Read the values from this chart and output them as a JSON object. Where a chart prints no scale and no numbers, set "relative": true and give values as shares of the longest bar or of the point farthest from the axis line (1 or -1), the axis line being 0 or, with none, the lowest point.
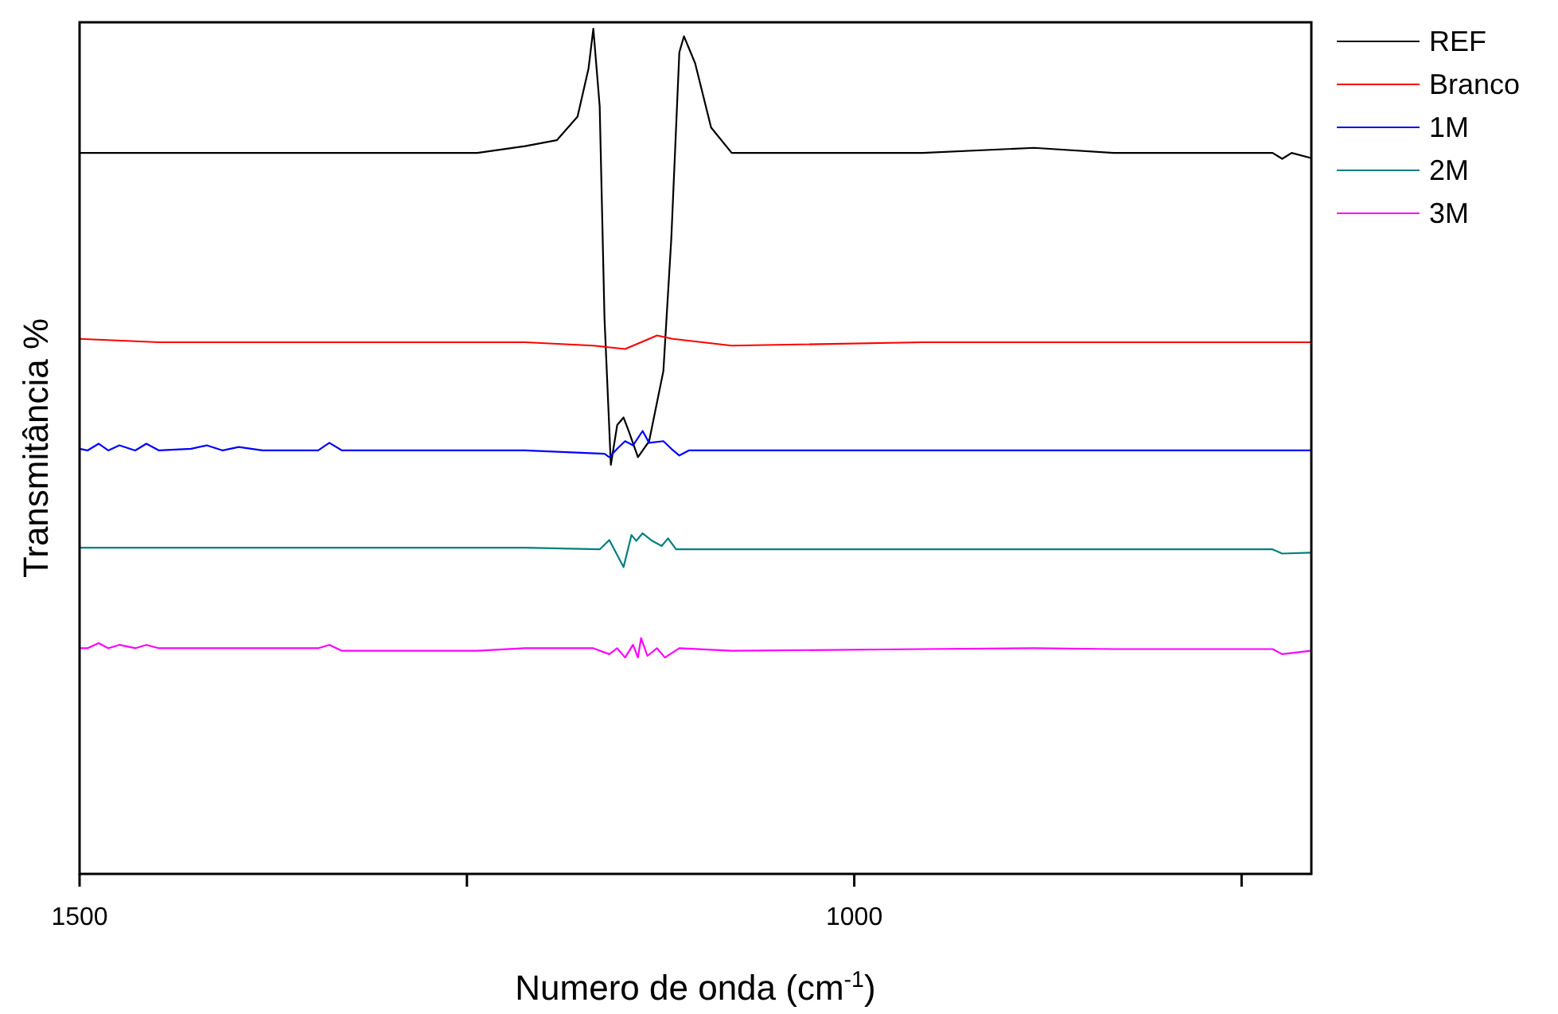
{
  "chart_data": {
    "type": "line",
    "xlabel": "Numero de onda (cm$^{-1}$)",
    "ylabel": "Transmitância %",
    "relative": true,
    "xlim": [
      1500,
      705
    ],
    "xticks": [
      1500,
      {
        "value": 1250,
        "label": null
      },
      1000,
      {
        "value": 750,
        "label": null
      }
    ],
    "legend": "right",
    "series": [
      {
        "name": "REF",
        "color": "#000000",
        "x": [
          1500,
          1448.7,
          1397.3,
          1346,
          1294.7,
          1243.3,
          1212.5,
          1192,
          1178.6,
          1171.5,
          1168.4,
          1164.3,
          1161.2,
          1157.1,
          1153,
          1148.9,
          1145.8,
          1139.6,
          1132.4,
          1123.2,
          1118.1,
          1112.9,
          1109.9,
          1102.7,
          1092.4,
          1079.1,
          1038,
          955.9,
          884,
          832.6,
          781.3,
          730,
          723.8,
          717.7,
          705.3
        ],
        "values": [
          0.853,
          0.853,
          0.853,
          0.853,
          0.853,
          0.853,
          0.861,
          0.868,
          0.896,
          0.953,
          1.0,
          0.908,
          0.657,
          0.484,
          0.531,
          0.54,
          0.525,
          0.493,
          0.512,
          0.595,
          0.751,
          0.972,
          0.991,
          0.959,
          0.883,
          0.853,
          0.853,
          0.853,
          0.859,
          0.853,
          0.853,
          0.853,
          0.846,
          0.853,
          0.847
        ]
      },
      {
        "name": "Branco",
        "color": "#ff0000",
        "x": [
          1500,
          1448.7,
          1346,
          1243.3,
          1212.5,
          1168.4,
          1147.9,
          1127.3,
          1117.1,
          1079.1,
          955.9,
          832.6,
          705.3
        ],
        "values": [
          0.633,
          0.629,
          0.629,
          0.629,
          0.629,
          0.625,
          0.621,
          0.637,
          0.633,
          0.625,
          0.629,
          0.629,
          0.629
        ]
      },
      {
        "name": "1M",
        "color": "#0000ff",
        "x": [
          1500,
          1494.9,
          1487.7,
          1481.5,
          1474.3,
          1464.1,
          1456.9,
          1448.7,
          1428.1,
          1417.9,
          1407.6,
          1397.3,
          1381.9,
          1346,
          1338.8,
          1330.6,
          1294.7,
          1243.3,
          1212.5,
          1161.2,
          1158.1,
          1153,
          1147.9,
          1142.8,
          1136.6,
          1132.4,
          1123.2,
          1118.1,
          1112.9,
          1106.8,
          1079.1,
          955.9,
          832.6,
          705.3
        ],
        "values": [
          0.503,
          0.501,
          0.509,
          0.501,
          0.507,
          0.501,
          0.509,
          0.501,
          0.503,
          0.507,
          0.501,
          0.505,
          0.501,
          0.501,
          0.51,
          0.501,
          0.501,
          0.501,
          0.501,
          0.497,
          0.493,
          0.503,
          0.512,
          0.507,
          0.524,
          0.51,
          0.512,
          0.503,
          0.495,
          0.501,
          0.501,
          0.501,
          0.501,
          0.501
        ]
      },
      {
        "name": "2M",
        "color": "#008080",
        "x": [
          1500,
          1448.7,
          1346,
          1243.3,
          1212.5,
          1164.3,
          1158.1,
          1148.9,
          1143.8,
          1140.7,
          1136.6,
          1130.4,
          1124.3,
          1120.2,
          1115,
          1079.1,
          955.9,
          832.6,
          730,
          723.8,
          705.3
        ],
        "values": [
          0.386,
          0.386,
          0.386,
          0.386,
          0.386,
          0.384,
          0.395,
          0.363,
          0.401,
          0.394,
          0.403,
          0.394,
          0.388,
          0.397,
          0.384,
          0.384,
          0.384,
          0.384,
          0.384,
          0.379,
          0.38
        ]
      },
      {
        "name": "3M",
        "color": "#ff00ff",
        "x": [
          1500,
          1494.9,
          1487.7,
          1481.5,
          1474.3,
          1464.1,
          1456.9,
          1448.7,
          1428.1,
          1397.3,
          1346,
          1338.8,
          1330.6,
          1243.3,
          1212.5,
          1168.4,
          1158.1,
          1153,
          1147.9,
          1142.8,
          1139.6,
          1137.6,
          1133.5,
          1127.3,
          1122.2,
          1112.9,
          1079.1,
          955.9,
          884,
          832.6,
          730,
          723.8,
          705.3
        ],
        "values": [
          0.267,
          0.267,
          0.273,
          0.267,
          0.271,
          0.267,
          0.271,
          0.267,
          0.267,
          0.267,
          0.267,
          0.271,
          0.264,
          0.264,
          0.267,
          0.267,
          0.26,
          0.267,
          0.256,
          0.271,
          0.256,
          0.279,
          0.258,
          0.267,
          0.256,
          0.267,
          0.264,
          0.266,
          0.267,
          0.266,
          0.266,
          0.26,
          0.264
        ]
      }
    ]
  }
}
